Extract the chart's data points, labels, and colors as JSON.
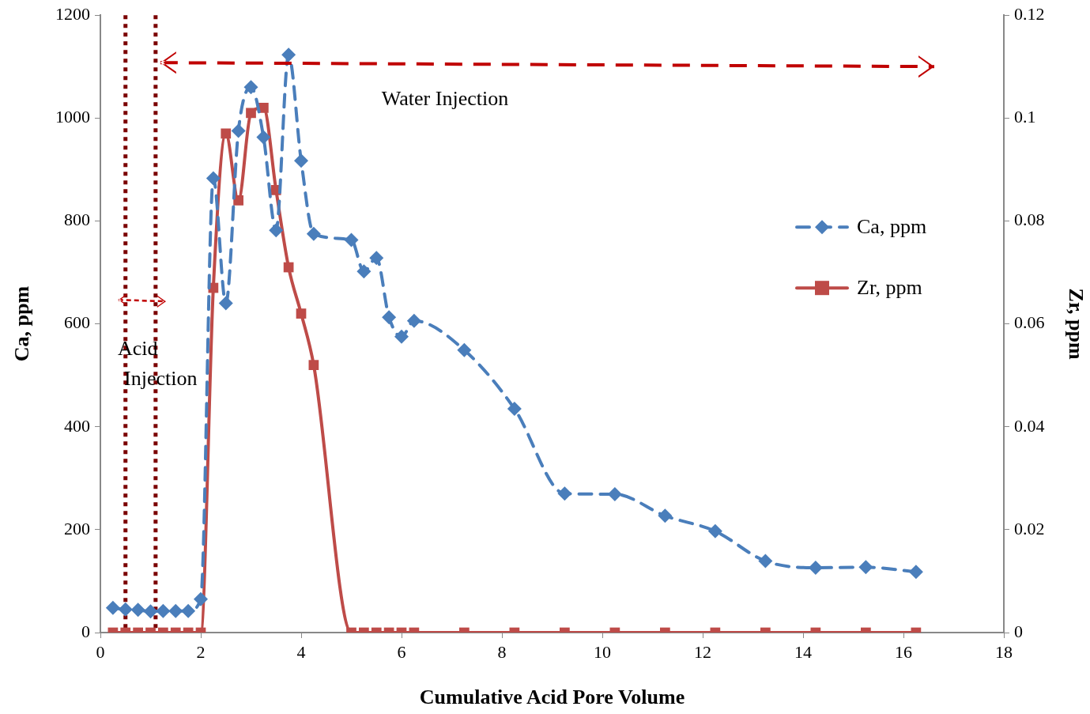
{
  "chart_data": {
    "type": "line",
    "xlabel": "Cumulative Acid Pore Volume",
    "ylabel": "Ca, ppm",
    "y2label": "Zr, ppm",
    "x": [
      0.25,
      0.5,
      0.75,
      1,
      1.25,
      1.5,
      1.75,
      2,
      2.25,
      2.5,
      2.75,
      3,
      3.25,
      3.5,
      3.75,
      4,
      4.25,
      5,
      5.25,
      5.5,
      5.75,
      6,
      6.25,
      7.25,
      8.25,
      9.25,
      10.25,
      11.25,
      12.25,
      13.25,
      14.25,
      15.25,
      16.25
    ],
    "series": [
      {
        "name": "Ca, ppm",
        "color": "#4a7ebb",
        "marker": "diamond",
        "line_style": "dashed",
        "values": [
          48,
          45,
          44,
          41,
          42,
          42,
          42,
          65,
          883,
          640,
          975,
          1060,
          963,
          782,
          1123,
          917,
          775,
          763,
          702,
          728,
          613,
          575,
          606,
          549,
          435,
          270,
          269,
          227,
          197,
          139,
          126,
          127,
          118
        ]
      },
      {
        "name": "Zr, ppm",
        "color": "#be4b48",
        "marker": "square",
        "line_style": "solid",
        "axis": "y2",
        "values": [
          0,
          0,
          0,
          0,
          0,
          0,
          0,
          0,
          0.067,
          0.097,
          0.084,
          0.101,
          0.102,
          0.086,
          0.071,
          0.062,
          0.052,
          0,
          0,
          0,
          0,
          0,
          0,
          0,
          0,
          0,
          0,
          0,
          0,
          0,
          0,
          0,
          0
        ]
      }
    ],
    "xlim": [
      0,
      18
    ],
    "xticks": [
      0,
      2,
      4,
      6,
      8,
      10,
      12,
      14,
      16,
      18
    ],
    "ylim": [
      0,
      1200
    ],
    "yticks": [
      0,
      200,
      400,
      600,
      800,
      1000,
      1200
    ],
    "y2lim": [
      0,
      0.12
    ],
    "y2ticks": [
      0,
      0.02,
      0.04,
      0.06,
      0.08,
      0.1,
      0.12
    ],
    "ref_lines": [
      {
        "axis": "x",
        "value": 0.5,
        "color": "#7b0000",
        "line_style": "dotted"
      },
      {
        "axis": "x",
        "value": 1.1,
        "color": "#7b0000",
        "line_style": "dotted"
      }
    ],
    "annotations": [
      "Water Injection",
      "Acid Injection"
    ],
    "legend": "right",
    "grid": false
  }
}
